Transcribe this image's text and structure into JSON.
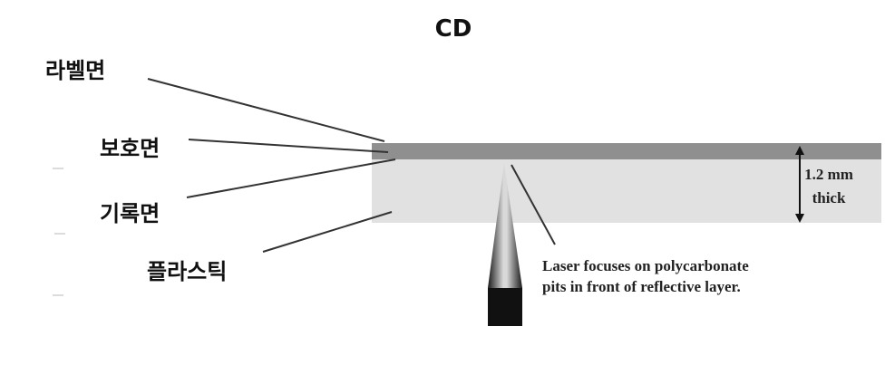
{
  "title": "CD",
  "labels": {
    "label_surface": "라벨면",
    "protective_surface": "보호면",
    "recording_surface": "기록면",
    "plastic": "플라스틱"
  },
  "thickness": {
    "line1": "1.2 mm",
    "line2": "thick"
  },
  "laser_note": {
    "line1": "Laser focuses on polycarbonate",
    "line2": "pits in front of reflective layer."
  },
  "colors": {
    "protective_layer": "#8f8f8f",
    "plastic_layer": "#e1e1e1",
    "laser_body": "#111111",
    "leader_lines": "#333333"
  }
}
